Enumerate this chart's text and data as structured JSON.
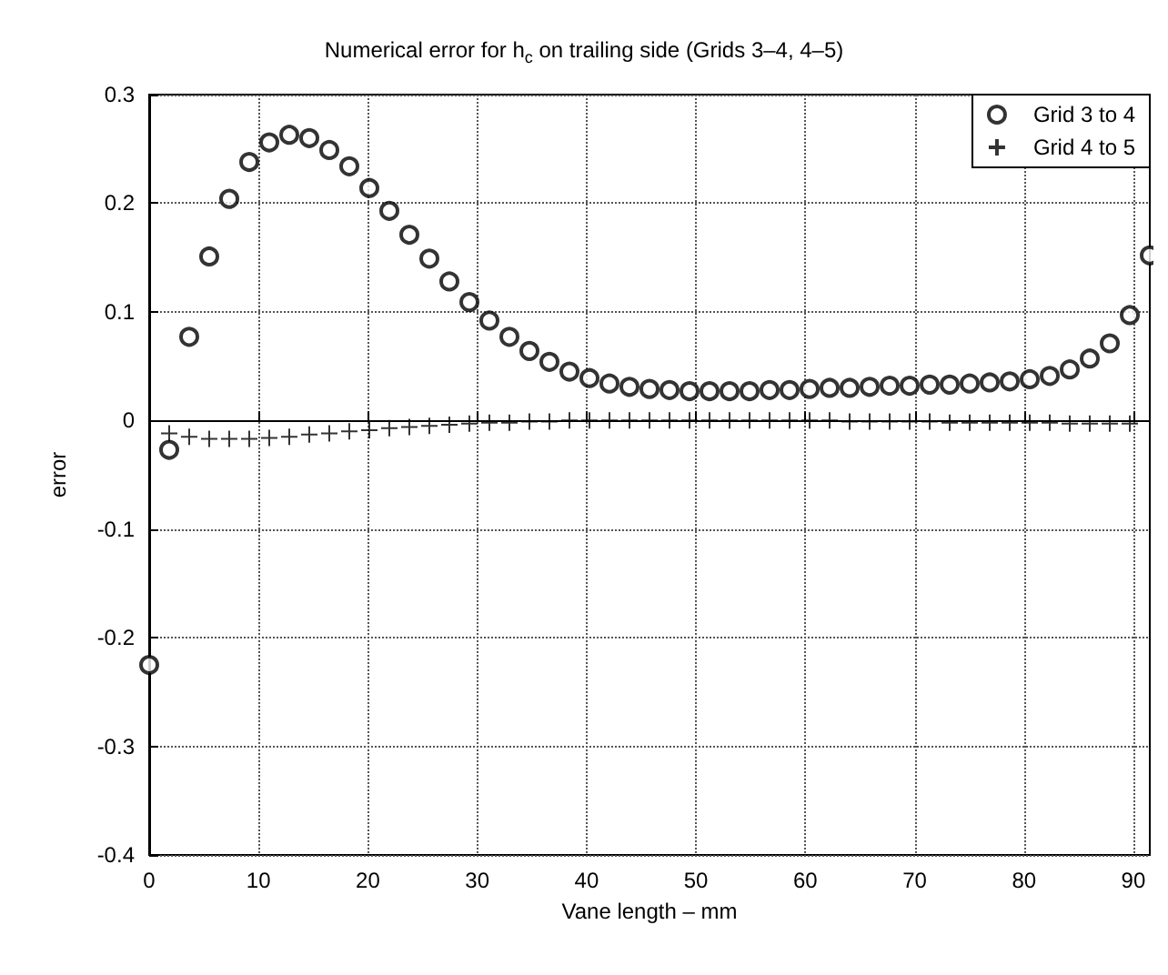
{
  "chart_data": {
    "type": "scatter",
    "title": "Numerical error for h$_{c}$ on trailing side (Grids 3–4, 4–5)",
    "xlabel": "Vane length – mm",
    "ylabel": "error",
    "xlim": [
      0,
      91.5
    ],
    "xticks": [
      0,
      10,
      20,
      30,
      40,
      50,
      60,
      70,
      80,
      90
    ],
    "ylim": [
      -0.4,
      0.3
    ],
    "yticks": [
      -0.4,
      -0.3,
      -0.2,
      -0.1,
      0,
      0.1,
      0.2,
      0.3
    ],
    "grid": true,
    "legend": "top right",
    "series": [
      {
        "name": "Grid 3 to 4",
        "color": "#000000",
        "marker": "circle",
        "x": [
          0,
          1.83,
          3.66,
          5.49,
          7.32,
          9.15,
          10.98,
          12.81,
          14.64,
          16.47,
          18.3,
          20.13,
          21.96,
          23.79,
          25.62,
          27.45,
          29.28,
          31.11,
          32.94,
          34.77,
          36.6,
          38.43,
          40.26,
          42.09,
          43.92,
          45.75,
          47.58,
          49.41,
          51.24,
          53.07,
          54.9,
          56.73,
          58.56,
          60.39,
          62.22,
          64.05,
          65.88,
          67.71,
          69.54,
          71.37,
          73.2,
          75.03,
          76.86,
          78.69,
          80.52,
          82.35,
          84.18,
          86.01,
          87.84,
          89.67,
          91.5
        ],
        "values": [
          -0.225,
          -0.027,
          0.077,
          0.151,
          0.204,
          0.238,
          0.256,
          0.263,
          0.26,
          0.249,
          0.234,
          0.214,
          0.193,
          0.171,
          0.149,
          0.128,
          0.109,
          0.092,
          0.077,
          0.064,
          0.054,
          0.045,
          0.039,
          0.034,
          0.031,
          0.029,
          0.028,
          0.027,
          0.027,
          0.027,
          0.027,
          0.028,
          0.028,
          0.029,
          0.03,
          0.03,
          0.031,
          0.032,
          0.032,
          0.033,
          0.033,
          0.034,
          0.035,
          0.036,
          0.038,
          0.041,
          0.047,
          0.057,
          0.071,
          0.097,
          0.152
        ]
      },
      {
        "name": "Grid 4 to 5",
        "color": "#000000",
        "marker": "cross",
        "x": [
          1.83,
          3.66,
          5.49,
          7.32,
          9.15,
          10.98,
          12.81,
          14.64,
          16.47,
          18.3,
          20.13,
          21.96,
          23.79,
          25.62,
          27.45,
          29.28,
          31.11,
          32.94,
          34.77,
          36.6,
          38.43,
          40.26,
          42.09,
          43.92,
          45.75,
          47.58,
          49.41,
          51.24,
          53.07,
          54.9,
          56.73,
          58.56,
          60.39,
          62.22,
          64.05,
          65.88,
          67.71,
          69.54,
          71.37,
          73.2,
          75.03,
          76.86,
          78.69,
          80.52,
          82.35,
          84.18,
          86.01,
          87.84,
          89.67
        ],
        "values": [
          -0.012,
          -0.015,
          -0.017,
          -0.017,
          -0.017,
          -0.016,
          -0.015,
          -0.013,
          -0.012,
          -0.01,
          -0.009,
          -0.007,
          -0.006,
          -0.005,
          -0.004,
          -0.003,
          -0.002,
          -0.002,
          -0.001,
          -0.001,
          0,
          0,
          0,
          0,
          0,
          0,
          0,
          0,
          0,
          0,
          0,
          0,
          0,
          0,
          -0.001,
          -0.001,
          -0.001,
          -0.001,
          -0.001,
          -0.002,
          -0.002,
          -0.002,
          -0.002,
          -0.002,
          -0.002,
          -0.003,
          -0.003,
          -0.003,
          -0.003
        ]
      }
    ]
  }
}
